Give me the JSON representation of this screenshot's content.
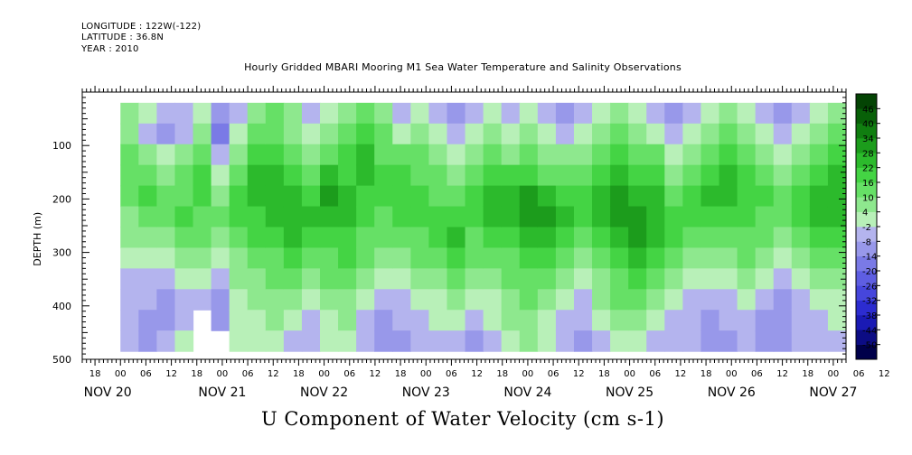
{
  "header": {
    "longitude": "LONGITUDE : 122W(-122)",
    "latitude": "LATITUDE : 36.8N",
    "year": "YEAR : 2010",
    "title": "Hourly Gridded MBARI Mooring M1 Sea Water Temperature and Salinity Observations"
  },
  "caption": "U Component of Water Velocity (cm s-1)",
  "chart_data": {
    "type": "heatmap",
    "title": "Hourly Gridded MBARI Mooring M1 Sea Water Temperature and Salinity Observations",
    "xlabel": "",
    "ylabel": "DEPTH (m)",
    "colorbar_label": "U Component of Water Velocity (cm s-1)",
    "x_range_hours": [
      -9,
      171
    ],
    "data_start_hour": 0,
    "y_range_m": [
      500,
      0
    ],
    "y_ticks": [
      100,
      200,
      300,
      400,
      500
    ],
    "y_tick_labels": [
      "100",
      "200",
      "300",
      "400",
      "500"
    ],
    "x_hour_tick_labels": [
      "18",
      "00",
      "06",
      "12",
      "18",
      "00",
      "06",
      "12",
      "18",
      "00",
      "06",
      "12",
      "18",
      "00",
      "06",
      "12",
      "18",
      "00",
      "06",
      "12",
      "18",
      "00",
      "06",
      "12",
      "18",
      "00",
      "06",
      "12",
      "18",
      "00",
      "06",
      "12"
    ],
    "x_day_labels": [
      "NOV 20",
      "NOV 21",
      "NOV 22",
      "NOV 23",
      "NOV 24",
      "NOV 25",
      "NOV 26",
      "NOV 27"
    ],
    "depth_coverage_m": [
      20,
      485
    ],
    "colorbar": {
      "levels": [
        -50,
        -44,
        -38,
        -32,
        -26,
        -20,
        -14,
        -8,
        -2,
        4,
        10,
        16,
        22,
        28,
        34,
        40,
        46
      ],
      "tick_labels": [
        "46",
        "40",
        "34",
        "28",
        "22",
        "16",
        "10",
        "4",
        "-2",
        "-8",
        "-14",
        "-20",
        "-26",
        "-32",
        "-38",
        "-44",
        "-50"
      ],
      "colors": [
        "#00004a",
        "#0c0c84",
        "#1a1ab4",
        "#2c2cd0",
        "#4646dc",
        "#5e5ee2",
        "#7a7ae6",
        "#9898ea",
        "#b4b4ee",
        "#b8f0b8",
        "#8ee88e",
        "#66e066",
        "#44d444",
        "#2cba2c",
        "#1c9c1c",
        "#107e10",
        "#086008",
        "#044404"
      ]
    },
    "columns_u_cm_s": [
      [
        null,
        null,
        null,
        null,
        null,
        null,
        null,
        null,
        null,
        null,
        null,
        null
      ],
      [
        null,
        null,
        null,
        null,
        null,
        null,
        null,
        null,
        null,
        null,
        null,
        null
      ],
      [
        null,
        null,
        null,
        null,
        null,
        null,
        null,
        null,
        null,
        null,
        null,
        null
      ],
      [
        null,
        null,
        null,
        null,
        null,
        null,
        null,
        null,
        null,
        null,
        null,
        null
      ],
      [
        null,
        null,
        null,
        null,
        null,
        null,
        null,
        null,
        null,
        null,
        null,
        null
      ],
      [
        4,
        4,
        10,
        10,
        10,
        4,
        4,
        -2,
        -8,
        -8,
        -8,
        -8
      ],
      [
        -2,
        -8,
        4,
        10,
        16,
        10,
        4,
        -2,
        -8,
        -8,
        -14,
        -14
      ],
      [
        -8,
        -14,
        -2,
        4,
        10,
        10,
        4,
        -2,
        -8,
        -14,
        -14,
        -8
      ],
      [
        -8,
        -8,
        4,
        10,
        10,
        16,
        10,
        4,
        -2,
        -8,
        -8,
        -2
      ],
      [
        -2,
        4,
        10,
        16,
        16,
        10,
        10,
        4,
        -2,
        -8,
        null,
        null
      ],
      [
        -14,
        -20,
        -8,
        -2,
        4,
        10,
        4,
        -2,
        -8,
        -14,
        -14,
        null
      ],
      [
        -8,
        -2,
        4,
        10,
        16,
        16,
        10,
        4,
        4,
        -2,
        -2,
        -2
      ],
      [
        4,
        10,
        16,
        22,
        22,
        16,
        16,
        10,
        4,
        4,
        -2,
        -2
      ],
      [
        10,
        10,
        16,
        22,
        22,
        22,
        16,
        10,
        10,
        4,
        4,
        -2
      ],
      [
        4,
        4,
        10,
        16,
        22,
        22,
        22,
        16,
        10,
        4,
        -2,
        -8
      ],
      [
        -8,
        -2,
        4,
        10,
        16,
        22,
        16,
        10,
        4,
        -2,
        -8,
        -8
      ],
      [
        -2,
        4,
        10,
        22,
        28,
        22,
        16,
        10,
        10,
        4,
        -2,
        -2
      ],
      [
        4,
        10,
        16,
        16,
        22,
        22,
        16,
        16,
        10,
        4,
        4,
        -2
      ],
      [
        10,
        16,
        22,
        22,
        16,
        16,
        10,
        10,
        4,
        -2,
        -8,
        -8
      ],
      [
        4,
        10,
        10,
        16,
        16,
        10,
        10,
        4,
        -2,
        -8,
        -14,
        -14
      ],
      [
        -8,
        -2,
        10,
        16,
        16,
        16,
        10,
        4,
        -2,
        -8,
        -8,
        -14
      ],
      [
        -2,
        4,
        10,
        10,
        16,
        16,
        10,
        10,
        4,
        -2,
        -8,
        -8
      ],
      [
        -8,
        -2,
        4,
        10,
        10,
        16,
        16,
        10,
        4,
        -2,
        -2,
        -8
      ],
      [
        -14,
        -8,
        -2,
        4,
        10,
        16,
        22,
        16,
        10,
        4,
        -2,
        -8
      ],
      [
        -8,
        -2,
        4,
        10,
        16,
        16,
        10,
        10,
        4,
        -2,
        -8,
        -14
      ],
      [
        -2,
        4,
        10,
        16,
        22,
        22,
        16,
        10,
        4,
        -2,
        -2,
        -8
      ],
      [
        -8,
        -2,
        4,
        16,
        22,
        22,
        16,
        10,
        10,
        4,
        4,
        -2
      ],
      [
        -2,
        4,
        10,
        16,
        28,
        28,
        22,
        16,
        10,
        10,
        4,
        4
      ],
      [
        -8,
        -2,
        4,
        10,
        22,
        28,
        22,
        16,
        10,
        4,
        -2,
        -2
      ],
      [
        -14,
        -8,
        4,
        10,
        16,
        22,
        16,
        10,
        4,
        -2,
        -8,
        -8
      ],
      [
        -8,
        -2,
        4,
        10,
        16,
        16,
        10,
        4,
        -2,
        -8,
        -8,
        -14
      ],
      [
        -2,
        4,
        10,
        16,
        22,
        22,
        16,
        10,
        4,
        4,
        -2,
        -8
      ],
      [
        4,
        10,
        16,
        22,
        28,
        28,
        22,
        16,
        10,
        10,
        4,
        -2
      ],
      [
        -2,
        4,
        10,
        16,
        22,
        28,
        28,
        22,
        16,
        10,
        4,
        -2
      ],
      [
        -8,
        -2,
        10,
        16,
        22,
        22,
        22,
        16,
        10,
        4,
        -2,
        -8
      ],
      [
        -14,
        -8,
        -2,
        4,
        10,
        16,
        16,
        10,
        4,
        -2,
        -8,
        -8
      ],
      [
        -8,
        -2,
        4,
        10,
        16,
        16,
        10,
        4,
        -2,
        -8,
        -8,
        -8
      ],
      [
        -2,
        4,
        10,
        16,
        22,
        16,
        10,
        4,
        -2,
        -8,
        -14,
        -14
      ],
      [
        4,
        10,
        16,
        22,
        22,
        16,
        10,
        4,
        -2,
        -8,
        -8,
        -14
      ],
      [
        -2,
        4,
        10,
        16,
        16,
        16,
        10,
        10,
        4,
        -2,
        -8,
        -8
      ],
      [
        -8,
        -2,
        4,
        10,
        16,
        10,
        10,
        4,
        -2,
        -8,
        -14,
        -14
      ],
      [
        -14,
        -8,
        -2,
        4,
        10,
        10,
        4,
        -2,
        -8,
        -14,
        -14,
        -14
      ],
      [
        -8,
        -2,
        4,
        10,
        16,
        16,
        10,
        4,
        -2,
        -8,
        -8,
        -8
      ],
      [
        -2,
        4,
        10,
        16,
        22,
        22,
        16,
        10,
        4,
        -2,
        -8,
        -8
      ],
      [
        4,
        10,
        16,
        22,
        22,
        22,
        16,
        10,
        4,
        -2,
        -2,
        -8
      ]
    ]
  }
}
